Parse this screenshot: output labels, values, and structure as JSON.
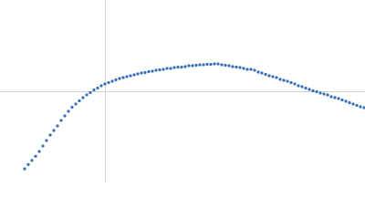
{
  "chart_data": {
    "type": "scatter",
    "color": "#3a6db5",
    "zero_lines": true,
    "xlim": [
      -115,
      285
    ],
    "ylim": [
      -100,
      100
    ],
    "x": [
      -88,
      -84,
      -80,
      -76,
      -72,
      -68,
      -64,
      -60,
      -56,
      -52,
      -48,
      -44,
      -40,
      -36,
      -32,
      -28,
      -24,
      -20,
      -16,
      -12,
      -8,
      -4,
      0,
      4,
      8,
      12,
      16,
      20,
      24,
      28,
      32,
      36,
      40,
      44,
      48,
      52,
      56,
      60,
      64,
      68,
      72,
      76,
      80,
      84,
      88,
      92,
      96,
      100,
      104,
      108,
      112,
      116,
      120,
      124,
      128,
      132,
      136,
      140,
      144,
      148,
      152,
      156,
      160,
      164,
      168,
      172,
      176,
      180,
      184,
      188,
      192,
      196,
      200,
      204,
      208,
      212,
      216,
      220,
      224,
      228,
      232,
      236,
      240,
      244,
      248,
      252,
      256,
      260,
      264,
      268,
      272,
      276,
      280,
      284
    ],
    "values": [
      -85,
      -80.4,
      -75.8,
      -71.2,
      -66,
      -60,
      -54,
      -48,
      -43,
      -38,
      -32,
      -27,
      -22,
      -17.5,
      -14,
      -10.5,
      -7,
      -4,
      -1.5,
      1.5,
      3.5,
      6,
      8,
      9.5,
      11,
      12.5,
      14,
      15,
      16,
      17,
      18,
      19,
      20,
      20.5,
      21.5,
      22,
      23,
      23.5,
      24,
      25,
      25,
      26,
      26.5,
      26.5,
      27,
      28,
      28,
      28.5,
      29,
      29,
      29.5,
      29.5,
      30,
      30,
      29,
      28.5,
      28,
      27,
      26.5,
      26,
      25,
      24,
      24,
      23,
      21,
      20,
      18.5,
      17,
      16,
      15,
      13,
      12,
      11,
      9.5,
      8,
      6,
      5,
      3.5,
      2,
      0.5,
      -0.5,
      -2,
      -3,
      -4,
      -6,
      -7,
      -8,
      -9.5,
      -11,
      -12.5,
      -14,
      -15.5,
      -17,
      -18
    ]
  }
}
